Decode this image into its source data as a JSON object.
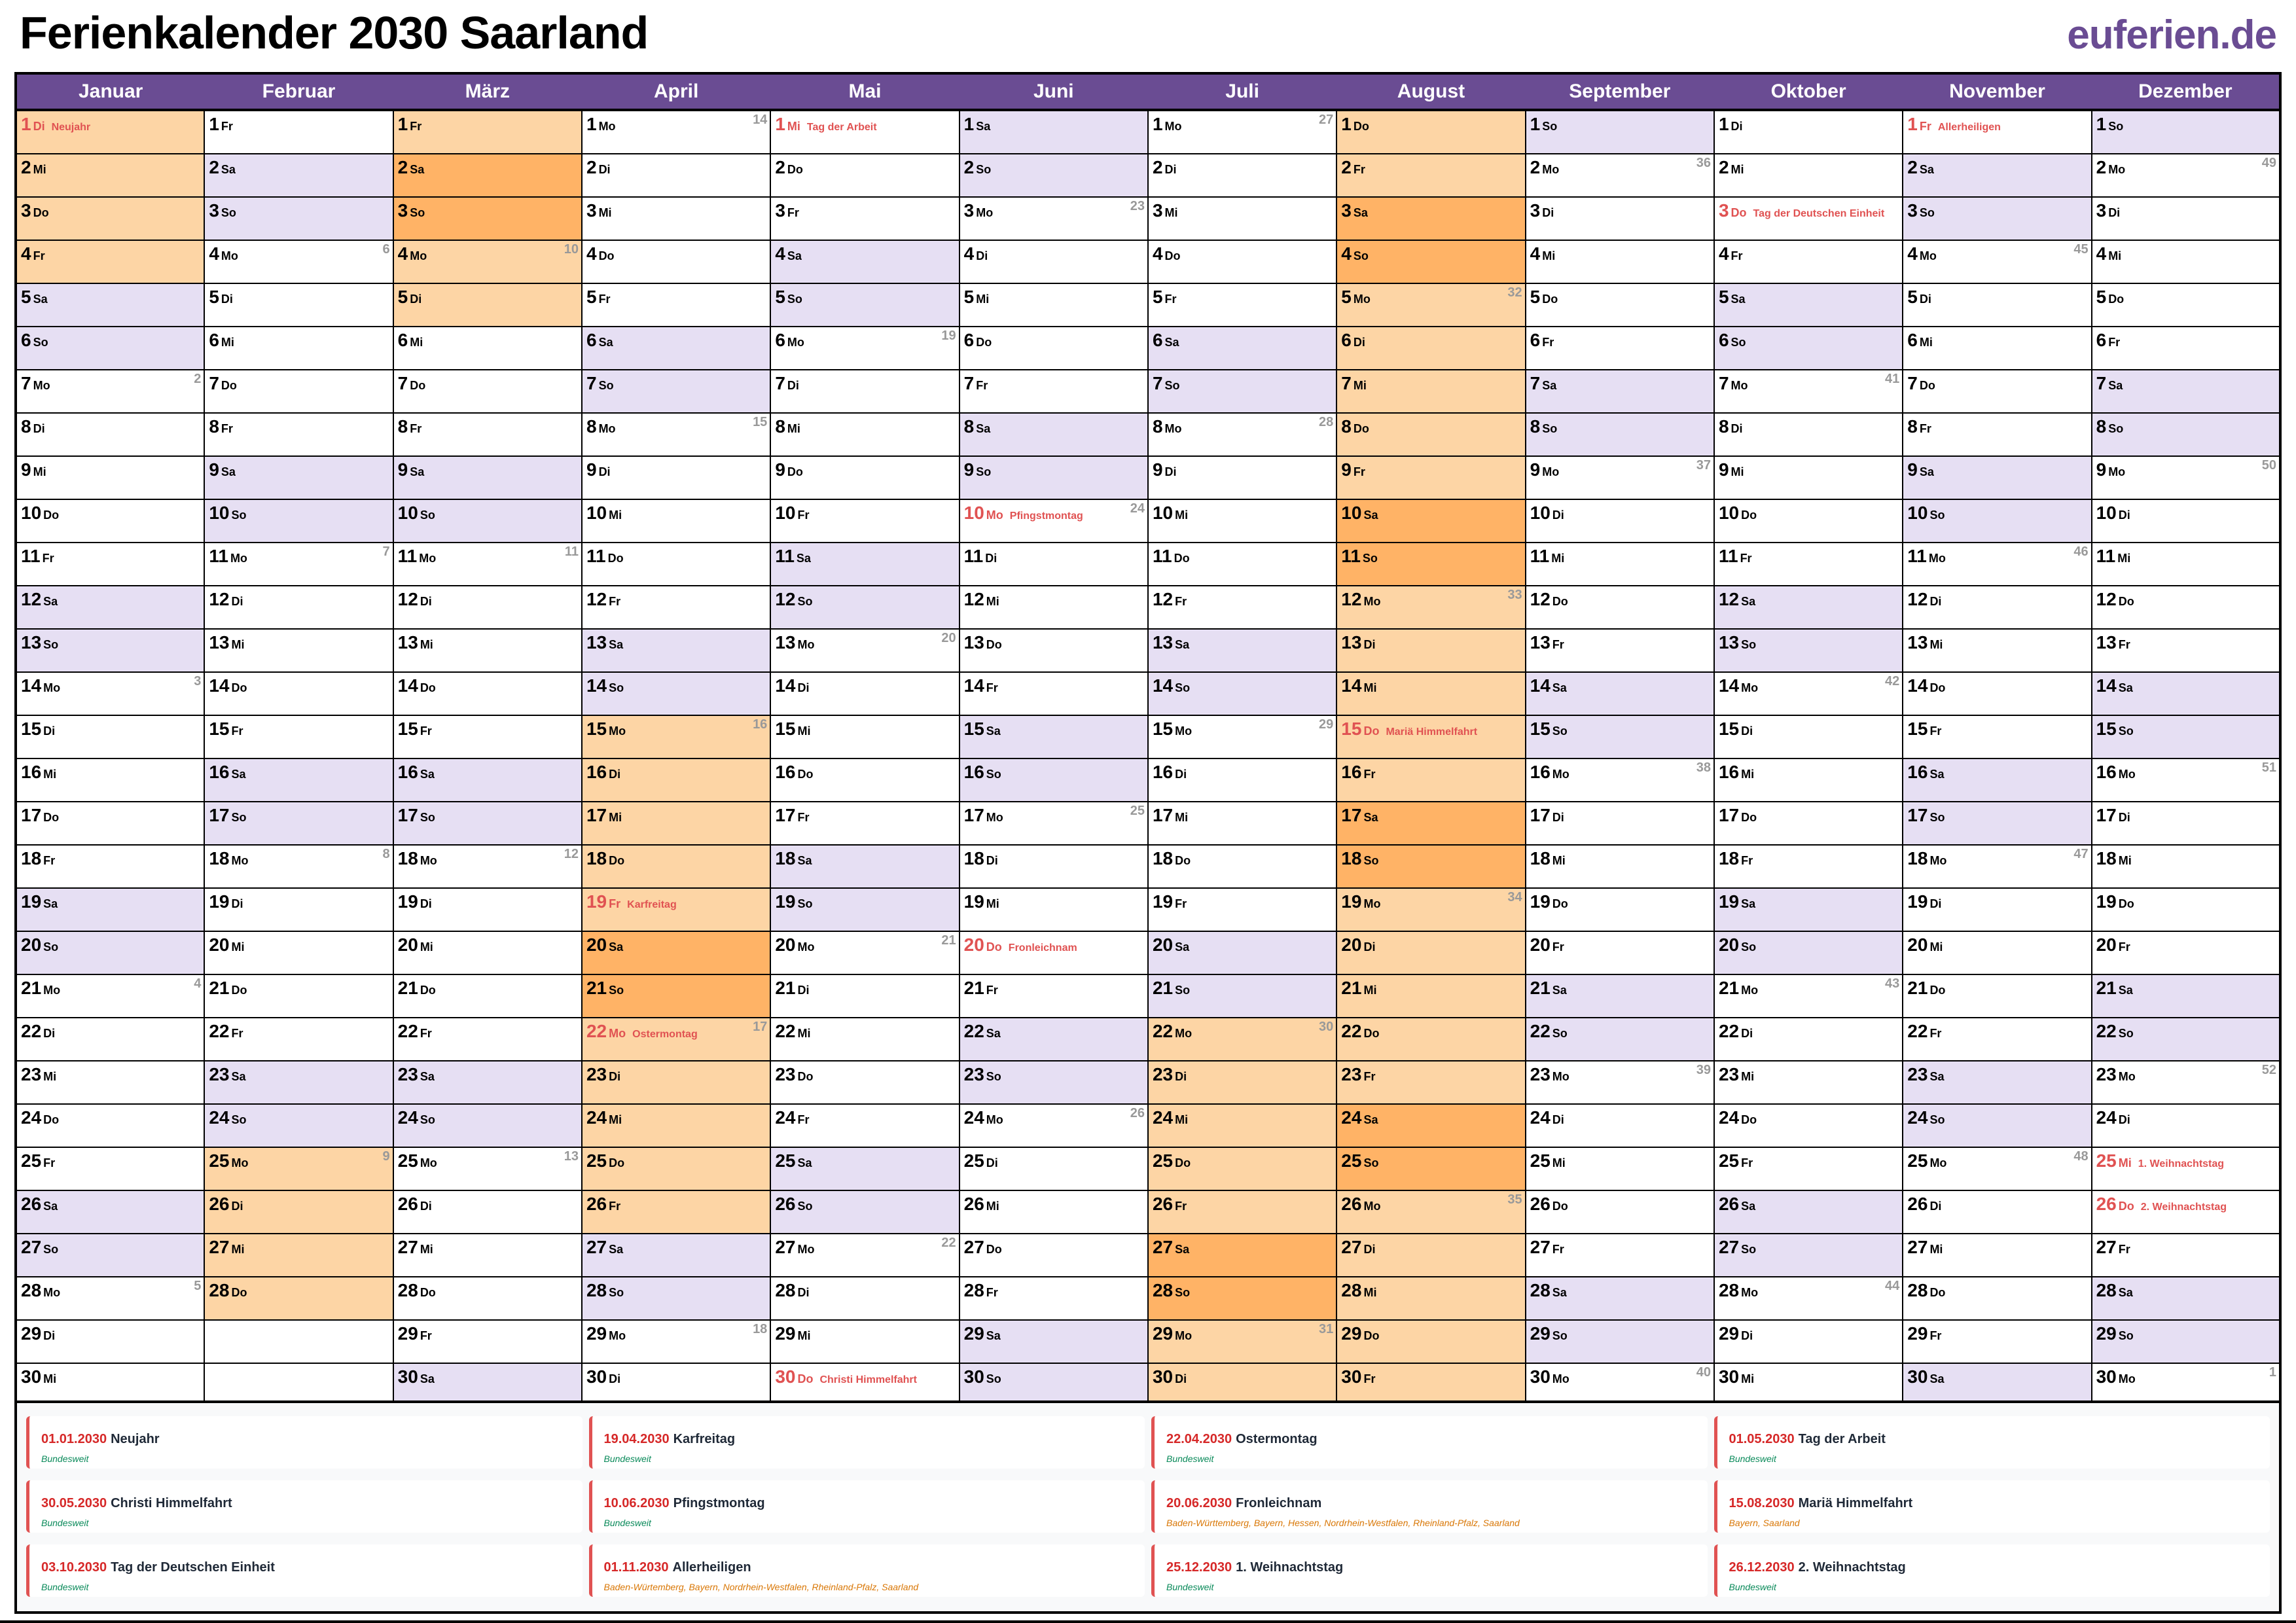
{
  "title": "Ferienkalender 2030 Saarland",
  "logo": "euferien.de",
  "year": 2030,
  "months": [
    "Januar",
    "Februar",
    "März",
    "April",
    "Mai",
    "Juni",
    "Juli",
    "August",
    "September",
    "Oktober",
    "November",
    "Dezember"
  ],
  "weekdays": [
    "So",
    "Mo",
    "Di",
    "Mi",
    "Do",
    "Fr",
    "Sa"
  ],
  "colors": {
    "header": "#6a4c93",
    "weekend": "#e6dff3",
    "vacation": "#fdd5a5",
    "vacation_weekend": "#ffb366",
    "holiday_text": "#e05252"
  },
  "vacations": [
    {
      "from": "2030-01-01",
      "to": "2030-01-04"
    },
    {
      "from": "2030-02-25",
      "to": "2030-03-05"
    },
    {
      "from": "2030-04-15",
      "to": "2030-04-26"
    },
    {
      "from": "2030-07-22",
      "to": "2030-08-30"
    }
  ],
  "holidays": [
    {
      "date": "01.01.2030",
      "name": "Neujahr",
      "regions": "Bundesweit",
      "national": true
    },
    {
      "date": "19.04.2030",
      "name": "Karfreitag",
      "regions": "Bundesweit",
      "national": true
    },
    {
      "date": "22.04.2030",
      "name": "Ostermontag",
      "regions": "Bundesweit",
      "national": true
    },
    {
      "date": "01.05.2030",
      "name": "Tag der Arbeit",
      "regions": "Bundesweit",
      "national": true
    },
    {
      "date": "30.05.2030",
      "name": "Christi Himmelfahrt",
      "regions": "Bundesweit",
      "national": true
    },
    {
      "date": "10.06.2030",
      "name": "Pfingstmontag",
      "regions": "Bundesweit",
      "national": true
    },
    {
      "date": "20.06.2030",
      "name": "Fronleichnam",
      "regions": "Baden-Württemberg, Bayern, Hessen, Nordrhein-Westfalen, Rheinland-Pfalz, Saarland",
      "national": false
    },
    {
      "date": "15.08.2030",
      "name": "Mariä Himmelfahrt",
      "regions": "Bayern, Saarland",
      "national": false
    },
    {
      "date": "03.10.2030",
      "name": "Tag der Deutschen Einheit",
      "regions": "Bundesweit",
      "national": true
    },
    {
      "date": "01.11.2030",
      "name": "Allerheiligen",
      "regions": "Baden-Würtemberg, Bayern, Nordrhein-Westfalen, Rheinland-Pfalz, Saarland",
      "national": false
    },
    {
      "date": "25.12.2030",
      "name": "1. Weihnachtstag",
      "regions": "Bundesweit",
      "national": true
    },
    {
      "date": "26.12.2030",
      "name": "2. Weihnachtstag",
      "regions": "Bundesweit",
      "national": true
    }
  ]
}
